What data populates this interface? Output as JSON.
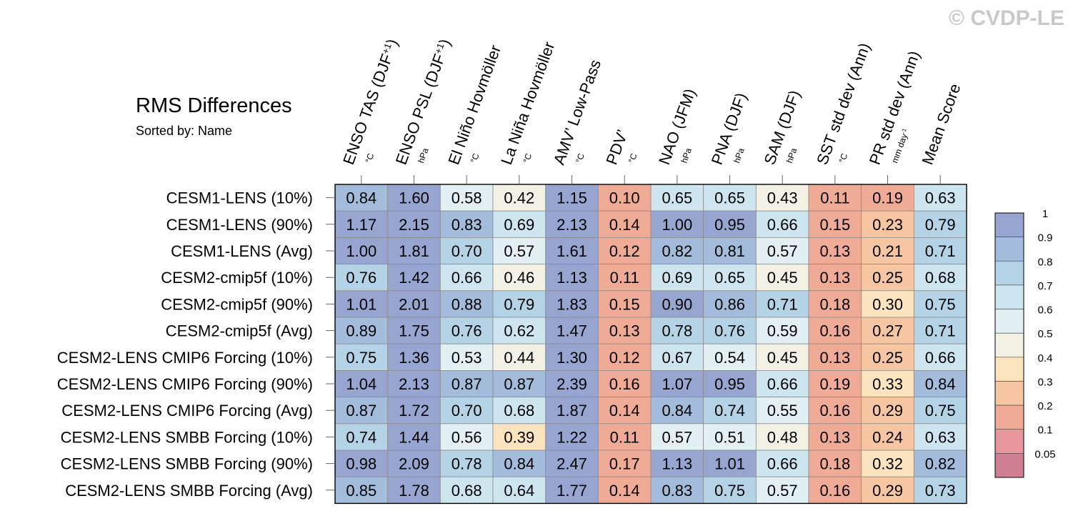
{
  "title": "RMS Differences",
  "subtitle": "Sorted by: Name",
  "watermark": "© CVDP-LE",
  "chart_data": {
    "type": "heatmap",
    "columns": [
      {
        "label": "ENSO TAS (DJF",
        "sup": "+1",
        "tail": ")",
        "unit": "°C"
      },
      {
        "label": "ENSO PSL (DJF",
        "sup": "+1",
        "tail": ")",
        "unit": "hPa"
      },
      {
        "label": "El Niño Hovmöller",
        "sup": "",
        "tail": "",
        "unit": "°C"
      },
      {
        "label": "La Niña Hovmöller",
        "sup": "",
        "tail": "",
        "unit": "°C"
      },
      {
        "label": "AMV’ Low-Pass",
        "sup": "",
        "tail": "",
        "unit": "°C"
      },
      {
        "label": "PDV’",
        "sup": "",
        "tail": "",
        "unit": "°C"
      },
      {
        "label": "NAO (JFM)",
        "sup": "",
        "tail": "",
        "unit": "hPa"
      },
      {
        "label": "PNA (DJF)",
        "sup": "",
        "tail": "",
        "unit": "hPa"
      },
      {
        "label": "SAM (DJF)",
        "sup": "",
        "tail": "",
        "unit": "hPa"
      },
      {
        "label": "SST std dev (Ann)",
        "sup": "",
        "tail": "",
        "unit": "°C"
      },
      {
        "label": "PR std dev (Ann)",
        "sup": "",
        "tail": "",
        "unit": "mm day",
        "unit_sup": "-1"
      },
      {
        "label": "Mean Score",
        "sup": "",
        "tail": "",
        "unit": ""
      }
    ],
    "rows": [
      {
        "name": "CESM1-LENS (10%)",
        "values": [
          "0.84",
          "1.60",
          "0.58",
          "0.42",
          "1.15",
          "0.10",
          "0.65",
          "0.65",
          "0.43",
          "0.11",
          "0.19",
          "0.63"
        ]
      },
      {
        "name": "CESM1-LENS (90%)",
        "values": [
          "1.17",
          "2.15",
          "0.83",
          "0.69",
          "2.13",
          "0.14",
          "1.00",
          "0.95",
          "0.66",
          "0.15",
          "0.23",
          "0.79"
        ]
      },
      {
        "name": "CESM1-LENS (Avg)",
        "values": [
          "1.00",
          "1.81",
          "0.70",
          "0.57",
          "1.61",
          "0.12",
          "0.82",
          "0.81",
          "0.57",
          "0.13",
          "0.21",
          "0.71"
        ]
      },
      {
        "name": "CESM2-cmip5f (10%)",
        "values": [
          "0.76",
          "1.42",
          "0.66",
          "0.46",
          "1.13",
          "0.11",
          "0.69",
          "0.65",
          "0.45",
          "0.13",
          "0.25",
          "0.68"
        ]
      },
      {
        "name": "CESM2-cmip5f (90%)",
        "values": [
          "1.01",
          "2.01",
          "0.88",
          "0.79",
          "1.83",
          "0.15",
          "0.90",
          "0.86",
          "0.71",
          "0.18",
          "0.30",
          "0.75"
        ]
      },
      {
        "name": "CESM2-cmip5f (Avg)",
        "values": [
          "0.89",
          "1.75",
          "0.76",
          "0.62",
          "1.47",
          "0.13",
          "0.78",
          "0.76",
          "0.59",
          "0.16",
          "0.27",
          "0.71"
        ]
      },
      {
        "name": "CESM2-LENS CMIP6 Forcing (10%)",
        "values": [
          "0.75",
          "1.36",
          "0.53",
          "0.44",
          "1.30",
          "0.12",
          "0.67",
          "0.54",
          "0.45",
          "0.13",
          "0.25",
          "0.66"
        ]
      },
      {
        "name": "CESM2-LENS CMIP6 Forcing (90%)",
        "values": [
          "1.04",
          "2.13",
          "0.87",
          "0.87",
          "2.39",
          "0.16",
          "1.07",
          "0.95",
          "0.66",
          "0.19",
          "0.33",
          "0.84"
        ]
      },
      {
        "name": "CESM2-LENS CMIP6 Forcing (Avg)",
        "values": [
          "0.87",
          "1.72",
          "0.70",
          "0.68",
          "1.87",
          "0.14",
          "0.84",
          "0.74",
          "0.55",
          "0.16",
          "0.29",
          "0.75"
        ]
      },
      {
        "name": "CESM2-LENS SMBB Forcing (10%)",
        "values": [
          "0.74",
          "1.44",
          "0.56",
          "0.39",
          "1.22",
          "0.11",
          "0.57",
          "0.51",
          "0.48",
          "0.13",
          "0.24",
          "0.63"
        ]
      },
      {
        "name": "CESM2-LENS SMBB Forcing (90%)",
        "values": [
          "0.98",
          "2.09",
          "0.78",
          "0.84",
          "2.47",
          "0.17",
          "1.13",
          "1.01",
          "0.66",
          "0.18",
          "0.32",
          "0.82"
        ]
      },
      {
        "name": "CESM2-LENS SMBB Forcing (Avg)",
        "values": [
          "0.85",
          "1.78",
          "0.68",
          "0.64",
          "1.77",
          "0.14",
          "0.83",
          "0.75",
          "0.57",
          "0.16",
          "0.29",
          "0.73"
        ]
      }
    ],
    "colorbar": {
      "levels": [
        0.05,
        0.1,
        0.2,
        0.3,
        0.4,
        0.5,
        0.6,
        0.7,
        0.8,
        0.9,
        1
      ],
      "tick_labels": [
        "0.05",
        "0.1",
        "0.2",
        "0.3",
        "0.4",
        "0.5",
        "0.6",
        "0.7",
        "0.8",
        "0.9",
        "1"
      ],
      "colors": [
        "#d07f93",
        "#e7969c",
        "#f0ab96",
        "#f6c6a3",
        "#fbe3bd",
        "#f3f1e4",
        "#e2eff3",
        "#cde5ef",
        "#b5d3e7",
        "#a3bcdc",
        "#97a6d1"
      ]
    }
  }
}
